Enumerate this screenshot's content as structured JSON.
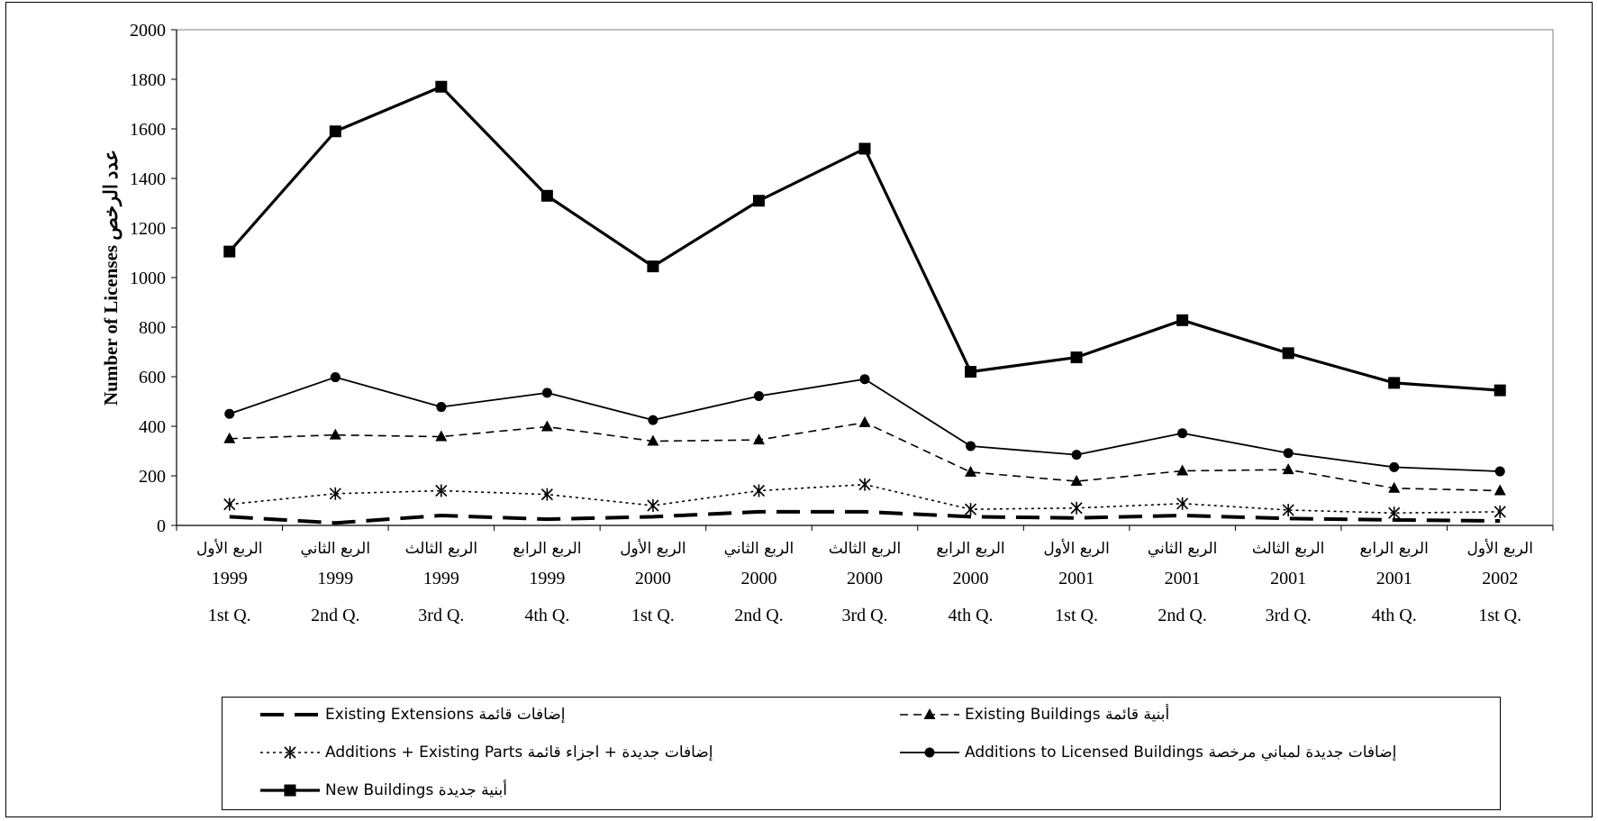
{
  "chart_data": {
    "type": "line",
    "ylabel": "Number of Licenses  عدد الرخص",
    "ylim": [
      0,
      2000
    ],
    "yticks": [
      0,
      200,
      400,
      600,
      800,
      1000,
      1200,
      1400,
      1600,
      1800,
      2000
    ],
    "grid": false,
    "legend_position": "bottom",
    "categories": [
      {
        "ar": "الربع الأول",
        "year": "1999",
        "q": "1st Q."
      },
      {
        "ar": "الربع الثاني",
        "year": "1999",
        "q": "2nd Q."
      },
      {
        "ar": "الربع الثالث",
        "year": "1999",
        "q": "3rd Q."
      },
      {
        "ar": "الربع الرابع",
        "year": "1999",
        "q": "4th Q."
      },
      {
        "ar": "الربع الأول",
        "year": "2000",
        "q": "1st Q."
      },
      {
        "ar": "الربع الثاني",
        "year": "2000",
        "q": "2nd Q."
      },
      {
        "ar": "الربع الثالث",
        "year": "2000",
        "q": "3rd Q."
      },
      {
        "ar": "الربع الرابع",
        "year": "2000",
        "q": "4th Q."
      },
      {
        "ar": "الربع الأول",
        "year": "2001",
        "q": "1st Q."
      },
      {
        "ar": "الربع الثاني",
        "year": "2001",
        "q": "2nd Q."
      },
      {
        "ar": "الربع الثالث",
        "year": "2001",
        "q": "3rd Q."
      },
      {
        "ar": "الربع الرابع",
        "year": "2001",
        "q": "4th Q."
      },
      {
        "ar": "الربع الأول",
        "year": "2002",
        "q": "1st Q."
      }
    ],
    "series": [
      {
        "name": "Existing Extensions  إضافات قائمة",
        "style": "long-dash-thick",
        "marker": "none",
        "values": [
          35,
          10,
          40,
          25,
          35,
          55,
          55,
          35,
          30,
          40,
          28,
          22,
          18
        ]
      },
      {
        "name": "Existing Buildings  أبنية قائمة",
        "style": "dashed",
        "marker": "triangle",
        "values": [
          350,
          365,
          358,
          398,
          340,
          345,
          415,
          215,
          178,
          220,
          225,
          150,
          140
        ]
      },
      {
        "name": "Additions + Existing  Parts  إضافات جديدة + اجزاء قائمة",
        "style": "dotted",
        "marker": "asterisk",
        "values": [
          85,
          128,
          140,
          125,
          80,
          140,
          165,
          65,
          70,
          88,
          62,
          50,
          55
        ]
      },
      {
        "name": "Additions to Licensed Buildings  إضافات جديدة لمباني مرخصة",
        "style": "solid-thin",
        "marker": "circle",
        "values": [
          450,
          598,
          478,
          535,
          425,
          522,
          590,
          320,
          285,
          372,
          292,
          235,
          218
        ]
      },
      {
        "name": "New  Buildings  أبنية  جديدة",
        "style": "solid-thick",
        "marker": "square",
        "values": [
          1105,
          1590,
          1770,
          1330,
          1045,
          1310,
          1520,
          620,
          678,
          828,
          695,
          575,
          545
        ]
      }
    ]
  },
  "legend": {
    "items": [
      {
        "label": "Existing Extensions  إضافات قائمة",
        "style": "long-dash-thick",
        "marker": "none"
      },
      {
        "label": "Existing Buildings  أبنية قائمة",
        "style": "dashed",
        "marker": "triangle"
      },
      {
        "label": "Additions + Existing  Parts  إضافات جديدة + اجزاء قائمة",
        "style": "dotted",
        "marker": "asterisk"
      },
      {
        "label": "Additions to Licensed Buildings  إضافات جديدة لمباني مرخصة",
        "style": "solid-thin",
        "marker": "circle"
      },
      {
        "label": "New  Buildings  أبنية  جديدة",
        "style": "solid-thick",
        "marker": "square"
      }
    ]
  }
}
